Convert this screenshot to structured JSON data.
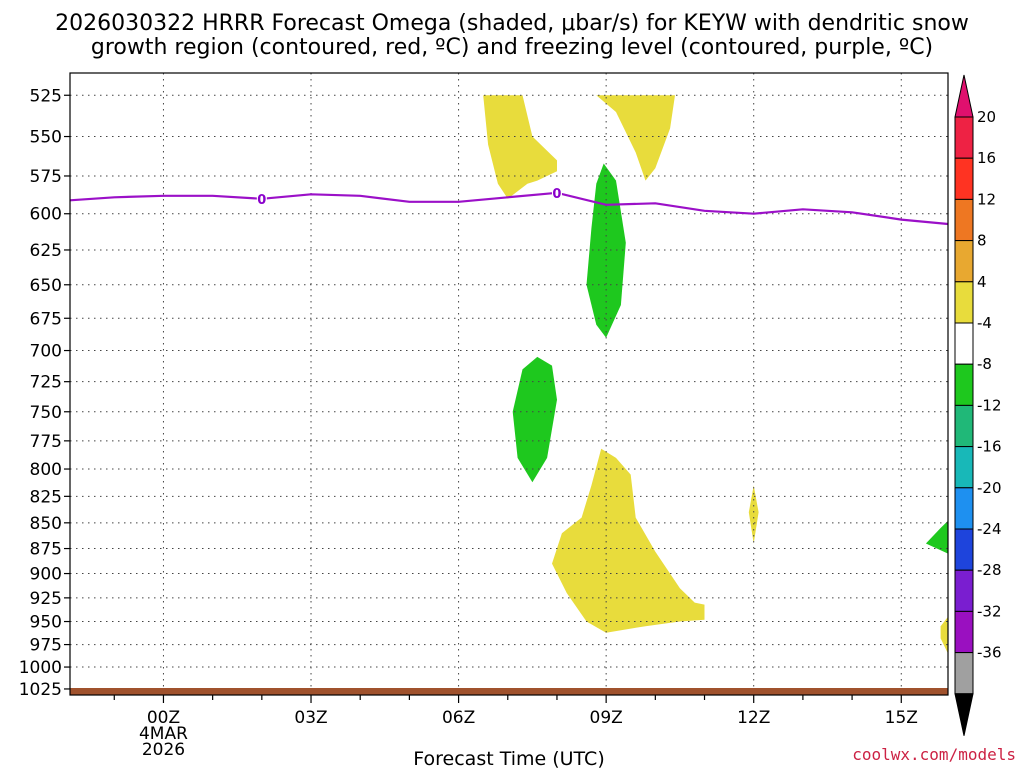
{
  "chart_data": {
    "type": "heatmap",
    "title_line1": "2026030322 HRRR Forecast Omega (shaded, μbar/s) for KEYW with dendritic snow",
    "title_line2": "growth region (contoured, red, ºC) and freezing level (contoured, purple, ºC)",
    "xlabel": "Forecast Time (UTC)",
    "credit": "coolwx.com/models",
    "x_range_hours": [
      -1.9,
      15.95
    ],
    "x_ticks": [
      {
        "hour": 0,
        "label": "00Z",
        "sub1": "4MAR",
        "sub2": "2026"
      },
      {
        "hour": 3,
        "label": "03Z"
      },
      {
        "hour": 6,
        "label": "06Z"
      },
      {
        "hour": 9,
        "label": "09Z"
      },
      {
        "hour": 12,
        "label": "12Z"
      },
      {
        "hour": 15,
        "label": "15Z"
      }
    ],
    "y_ticks_hpa": [
      "525",
      "550",
      "575",
      "600",
      "625",
      "650",
      "675",
      "700",
      "725",
      "750",
      "775",
      "800",
      "825",
      "850",
      "875",
      "900",
      "925",
      "950",
      "975",
      "1000",
      "1025"
    ],
    "colorbar": {
      "ticks": [
        "20",
        "16",
        "12",
        "8",
        "4",
        "-4",
        "-8",
        "-12",
        "-16",
        "-20",
        "-24",
        "-28",
        "-32",
        "-36"
      ],
      "colors": [
        "#ee2244",
        "#ff3322",
        "#ee7722",
        "#e8a830",
        "#e8dc3c",
        "#ffffff",
        "#1ec81e",
        "#20b878",
        "#18b8b8",
        "#1e90f0",
        "#1e44dc",
        "#7a1ed0",
        "#9a10c0",
        "#a0a0a0"
      ],
      "top_arrow_color": "#e0106e",
      "bottom_arrow_color": "#000000"
    },
    "freezing_level": {
      "label": "0",
      "color": "#9b10c8",
      "points": [
        [
          -1.9,
          591
        ],
        [
          -1.0,
          589
        ],
        [
          0.0,
          588
        ],
        [
          1.0,
          588
        ],
        [
          2.0,
          590
        ],
        [
          3.0,
          587
        ],
        [
          4.0,
          588
        ],
        [
          5.0,
          592
        ],
        [
          6.0,
          592
        ],
        [
          7.0,
          589
        ],
        [
          8.0,
          586
        ],
        [
          9.0,
          594
        ],
        [
          10.0,
          593
        ],
        [
          11.0,
          598
        ],
        [
          12.0,
          600
        ],
        [
          13.0,
          597
        ],
        [
          14.0,
          599
        ],
        [
          15.0,
          604
        ],
        [
          15.95,
          607
        ]
      ],
      "label_hours": [
        2.0,
        8.0
      ]
    },
    "surface_color": "#a0522d",
    "regions": [
      {
        "name": "yellow-upper",
        "value": 5,
        "points": [
          [
            6.5,
            525
          ],
          [
            6.6,
            555
          ],
          [
            6.8,
            580
          ],
          [
            7.0,
            590
          ],
          [
            7.4,
            580
          ],
          [
            7.6,
            578
          ],
          [
            8.0,
            572
          ],
          [
            8.0,
            565
          ],
          [
            7.5,
            550
          ],
          [
            7.3,
            525
          ]
        ]
      },
      {
        "name": "yellow-upper-right",
        "value": 5,
        "points": [
          [
            8.8,
            525
          ],
          [
            9.2,
            535
          ],
          [
            9.6,
            560
          ],
          [
            9.8,
            578
          ],
          [
            10.0,
            570
          ],
          [
            10.3,
            545
          ],
          [
            10.4,
            525
          ]
        ]
      },
      {
        "name": "green-top-09z",
        "value": -5,
        "points": [
          [
            8.95,
            567
          ],
          [
            9.2,
            578
          ],
          [
            9.4,
            620
          ],
          [
            9.3,
            665
          ],
          [
            9.0,
            690
          ],
          [
            8.8,
            680
          ],
          [
            8.6,
            650
          ],
          [
            8.7,
            610
          ],
          [
            8.8,
            580
          ]
        ]
      },
      {
        "name": "green-mid",
        "value": -5,
        "points": [
          [
            7.6,
            705
          ],
          [
            7.9,
            712
          ],
          [
            8.0,
            740
          ],
          [
            7.8,
            790
          ],
          [
            7.5,
            812
          ],
          [
            7.2,
            790
          ],
          [
            7.1,
            750
          ],
          [
            7.3,
            715
          ]
        ]
      },
      {
        "name": "yellow-lower",
        "value": 5,
        "points": [
          [
            8.9,
            782
          ],
          [
            9.2,
            790
          ],
          [
            9.5,
            805
          ],
          [
            9.6,
            845
          ],
          [
            10.0,
            878
          ],
          [
            10.5,
            915
          ],
          [
            10.8,
            930
          ],
          [
            11.0,
            932
          ],
          [
            11.0,
            948
          ],
          [
            10.5,
            950
          ],
          [
            9.8,
            955
          ],
          [
            9.0,
            962
          ],
          [
            8.6,
            950
          ],
          [
            8.2,
            920
          ],
          [
            7.9,
            890
          ],
          [
            8.1,
            860
          ],
          [
            8.5,
            845
          ],
          [
            8.7,
            815
          ]
        ]
      },
      {
        "name": "yellow-small-12z",
        "value": 5,
        "points": [
          [
            12.0,
            815
          ],
          [
            12.1,
            840
          ],
          [
            12.0,
            870
          ],
          [
            11.9,
            840
          ]
        ]
      },
      {
        "name": "green-right-edge",
        "value": -5,
        "points": [
          [
            15.95,
            848
          ],
          [
            15.95,
            880
          ],
          [
            15.5,
            870
          ],
          [
            15.8,
            855
          ]
        ]
      },
      {
        "name": "yellow-right-edge",
        "value": 5,
        "points": [
          [
            15.95,
            945
          ],
          [
            15.8,
            955
          ],
          [
            15.8,
            968
          ],
          [
            15.95,
            985
          ]
        ]
      }
    ]
  }
}
